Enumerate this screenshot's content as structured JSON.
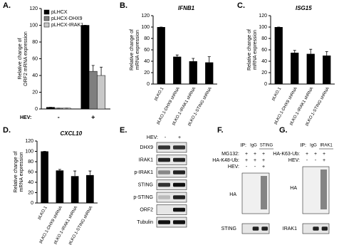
{
  "chart_data": [
    {
      "type": "bar",
      "label": "A.",
      "ylabel": [
        "Relative change of",
        "ORF2 mRNA expression"
      ],
      "xlabel": "HEV:",
      "categories": [
        "-",
        "+"
      ],
      "series": [
        {
          "name": "pLHCX",
          "color": "#000000",
          "values": [
            2,
            100
          ],
          "errors": [
            0,
            0
          ]
        },
        {
          "name": "pLHCX-DHX9",
          "color": "#7f7f7f",
          "values": [
            1,
            45
          ],
          "errors": [
            0,
            7
          ]
        },
        {
          "name": "pLHCX-IRAK1",
          "color": "#c8c8c8",
          "values": [
            1,
            40
          ],
          "errors": [
            0,
            10
          ]
        }
      ],
      "ylim": [
        0,
        120
      ],
      "yticks": [
        0,
        20,
        40,
        60,
        80,
        100,
        120
      ]
    },
    {
      "type": "bar",
      "label": "B.",
      "title": "IFNB1",
      "ylabel": [
        "Relative change of",
        "mRNA expression"
      ],
      "categories": [
        "pLKO.1",
        "pLKO.1-DHX9 shRNA",
        "pLKO.1-IRAK1 shRNA",
        "pLKO.1-STING shRNA"
      ],
      "values": [
        100,
        48,
        40,
        38
      ],
      "errors": [
        0,
        3,
        5,
        10
      ],
      "color": "#000000",
      "ylim": [
        0,
        120
      ],
      "yticks": [
        0,
        20,
        40,
        60,
        80,
        100,
        120
      ]
    },
    {
      "type": "bar",
      "label": "C.",
      "title": "ISG15",
      "ylabel": [
        "Relative change of",
        "mRNA expression"
      ],
      "categories": [
        "pLKO.1",
        "pLKO.1-DHX9 shRNA",
        "pLKO.1-IRAK1 shRNA",
        "pLKO.1-STING shRNA"
      ],
      "values": [
        100,
        55,
        53,
        50
      ],
      "errors": [
        0,
        4,
        8,
        7
      ],
      "color": "#000000",
      "ylim": [
        0,
        120
      ],
      "yticks": [
        0,
        20,
        40,
        60,
        80,
        100,
        120
      ]
    },
    {
      "type": "bar",
      "label": "D.",
      "title": "CXCL10",
      "ylabel": [
        "Relative change of",
        "mRNA expression"
      ],
      "categories": [
        "pLKO.1",
        "pLKO.1-DHX9 shRNA",
        "pLKO.1-IRAK1 shRNA",
        "pLKO.1-STING shRNA"
      ],
      "values": [
        100,
        63,
        52,
        54
      ],
      "errors": [
        0,
        2,
        10,
        8
      ],
      "color": "#000000",
      "ylim": [
        0,
        120
      ],
      "yticks": [
        0,
        20,
        40,
        60,
        80,
        100,
        120
      ]
    }
  ],
  "blots": [
    {
      "label": "E.",
      "header": "HEV:",
      "lanes": [
        "-",
        "+"
      ],
      "rows": [
        "DHX9",
        "IRAK1",
        "p-IRAK1",
        "STING",
        "p-STING",
        "ORF2",
        "Tubulin"
      ]
    },
    {
      "label": "F.",
      "ip": "IP:",
      "ip_lanes": [
        "IgG",
        "STING"
      ],
      "conditions": [
        {
          "name": "MG132:",
          "marks": [
            "+",
            "+",
            "+"
          ]
        },
        {
          "name": "HA-K48-Ub:",
          "marks": [
            "+",
            "+",
            "+"
          ]
        },
        {
          "name": "HEV:",
          "marks": [
            "-",
            "-",
            "+"
          ]
        }
      ],
      "rows": [
        "HA",
        "STING"
      ]
    },
    {
      "label": "G.",
      "ip": "IP:",
      "ip_lanes": [
        "IgG",
        "IRAK1"
      ],
      "conditions": [
        {
          "name": "HA-K63-Ub:",
          "marks": [
            "+",
            "+",
            "+"
          ]
        },
        {
          "name": "HEV:",
          "marks": [
            "-",
            "-",
            "+"
          ]
        }
      ],
      "rows": [
        "HA",
        "IRAK1"
      ]
    }
  ]
}
